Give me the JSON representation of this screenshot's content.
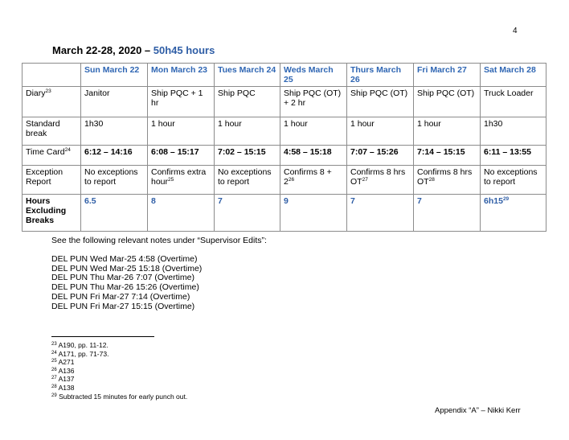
{
  "page_number": "4",
  "title": {
    "prefix": "March 22-28, 2020 – ",
    "highlight": "50h45 hours"
  },
  "table": {
    "headers": [
      "",
      "Sun March 22",
      "Mon March 23",
      "Tues March 24",
      "Weds March 25",
      "Thurs March 26",
      "Fri March 27",
      "Sat March 28"
    ],
    "rows": [
      {
        "label": "Diary",
        "label_sup": "23",
        "cells": [
          {
            "text": "Janitor"
          },
          {
            "text": "Ship PQC + 1 hr"
          },
          {
            "text": "Ship PQC"
          },
          {
            "text": "Ship PQC (OT) + 2 hr"
          },
          {
            "text": "Ship PQC (OT)"
          },
          {
            "text": "Ship PQC (OT)"
          },
          {
            "text": "Truck Loader"
          }
        ]
      },
      {
        "label": "Standard break",
        "label_sup": "",
        "cells": [
          {
            "text": "1h30"
          },
          {
            "text": "1 hour"
          },
          {
            "text": "1 hour"
          },
          {
            "text": "1 hour"
          },
          {
            "text": "1 hour"
          },
          {
            "text": "1 hour"
          },
          {
            "text": "1h30"
          }
        ]
      },
      {
        "label": "Time Card",
        "label_sup": "24",
        "cells": [
          {
            "text": "6:12 – 14:16"
          },
          {
            "text": "6:08 – 15:17"
          },
          {
            "text": "7:02 – 15:15"
          },
          {
            "text": "4:58 – 15:18"
          },
          {
            "text": "7:07 – 15:26"
          },
          {
            "text": "7:14 – 15:15"
          },
          {
            "text": "6:11 – 13:55"
          }
        ]
      },
      {
        "label": "Exception Report",
        "label_sup": "",
        "cells": [
          {
            "text": "No exceptions to report"
          },
          {
            "text": "Confirms extra hour",
            "sup": "25"
          },
          {
            "text": "No exceptions to report"
          },
          {
            "text": "Confirms 8 + 2",
            "sup": "26"
          },
          {
            "text": "Confirms 8 hrs OT",
            "sup": "27"
          },
          {
            "text": "Confirms 8 hrs OT",
            "sup": "28"
          },
          {
            "text": "No exceptions to report"
          }
        ]
      },
      {
        "label": "Hours Excluding Breaks",
        "label_sup": "",
        "cells": [
          {
            "text": "6.5"
          },
          {
            "text": "8"
          },
          {
            "text": "7"
          },
          {
            "text": "9"
          },
          {
            "text": "7"
          },
          {
            "text": "7"
          },
          {
            "text": "6h15",
            "sup": "29"
          }
        ]
      }
    ]
  },
  "notes": {
    "intro": "See the following relevant notes under “Supervisor Edits”:",
    "lines": [
      "DEL PUN Wed Mar-25 4:58 (Overtime)",
      "DEL PUN Wed Mar-25 15:18 (Overtime)",
      "DEL PUN Thu Mar-26 7:07 (Overtime)",
      "DEL PUN Thu Mar-26 15:26 (Overtime)",
      "DEL PUN Fri Mar-27 7:14 (Overtime)",
      "DEL PUN Fri Mar-27 15:15 (Overtime)"
    ]
  },
  "footnotes": [
    {
      "num": "23",
      "text": "A190, pp. 11-12."
    },
    {
      "num": "24",
      "text": "A171, pp. 71-73."
    },
    {
      "num": "25",
      "text": "A271"
    },
    {
      "num": "26",
      "text": "A136"
    },
    {
      "num": "27",
      "text": "A137"
    },
    {
      "num": "28",
      "text": "A138"
    },
    {
      "num": "29",
      "text": "Subtracted 15 minutes for early punch out."
    }
  ],
  "footer": "Appendix “A” – Nikki Kerr",
  "colors": {
    "accent_blue": "#2f5ea6"
  }
}
